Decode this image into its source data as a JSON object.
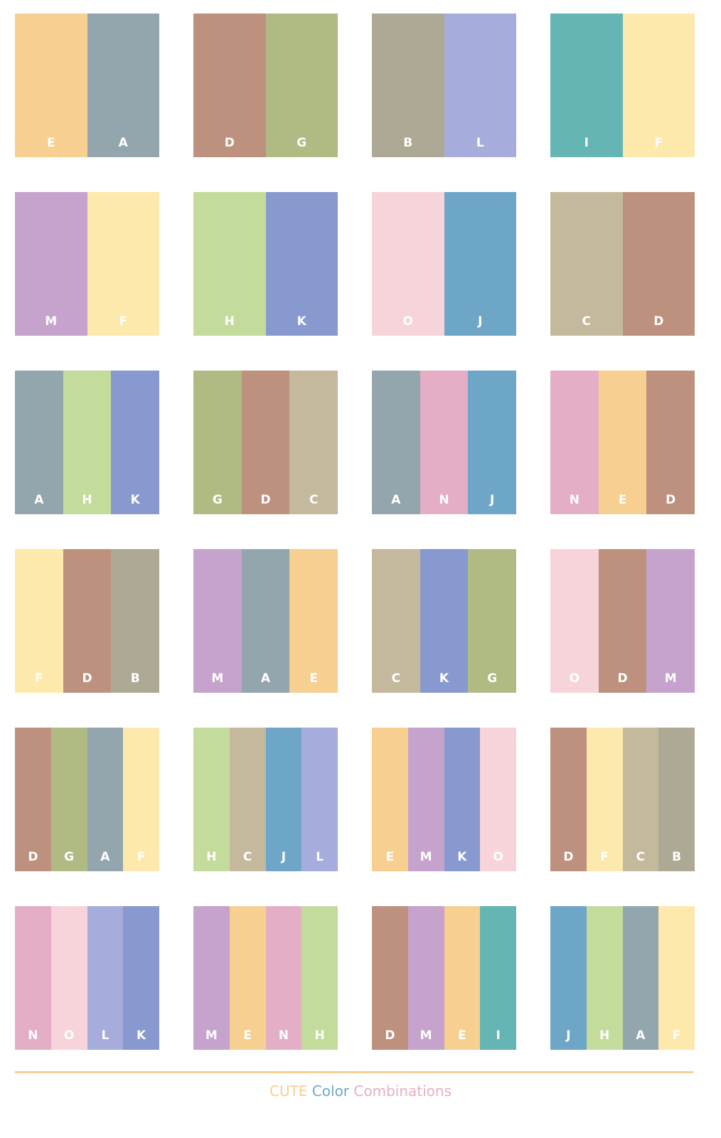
{
  "colors": {
    "A": "#93a6ad",
    "B": "#aea994",
    "C": "#c5b99d",
    "D": "#bd917d",
    "E": "#f6cf91",
    "F": "#fde9ab",
    "G": "#b0bb84",
    "H": "#c3dc9b",
    "I": "#64b5b4",
    "J": "#6ea6c8",
    "K": "#8899cf",
    "L": "#a6acdb",
    "M": "#c5a3cc",
    "N": "#e4aec7",
    "O": "#f6d4da"
  },
  "combinations": [
    [
      "E",
      "A"
    ],
    [
      "D",
      "G"
    ],
    [
      "B",
      "L"
    ],
    [
      "I",
      "F"
    ],
    [
      "M",
      "F"
    ],
    [
      "H",
      "K"
    ],
    [
      "O",
      "J"
    ],
    [
      "C",
      "D"
    ],
    [
      "A",
      "H",
      "K"
    ],
    [
      "G",
      "D",
      "C"
    ],
    [
      "A",
      "N",
      "J"
    ],
    [
      "N",
      "E",
      "D"
    ],
    [
      "F",
      "D",
      "B"
    ],
    [
      "M",
      "A",
      "E"
    ],
    [
      "C",
      "K",
      "G"
    ],
    [
      "O",
      "D",
      "M"
    ],
    [
      "D",
      "G",
      "A",
      "F"
    ],
    [
      "H",
      "C",
      "J",
      "L"
    ],
    [
      "E",
      "M",
      "K",
      "O"
    ],
    [
      "D",
      "F",
      "C",
      "B"
    ],
    [
      "N",
      "O",
      "L",
      "K"
    ],
    [
      "M",
      "E",
      "N",
      "H"
    ],
    [
      "D",
      "M",
      "E",
      "I"
    ],
    [
      "J",
      "H",
      "A",
      "F"
    ]
  ],
  "footer": {
    "word1": "CUTE",
    "word1_color": "#f6cf91",
    "word2": "Color",
    "word2_color": "#6ea6c8",
    "word3": "Combinations",
    "word3_color": "#e4aec7",
    "line_color": "#f6cf91"
  }
}
